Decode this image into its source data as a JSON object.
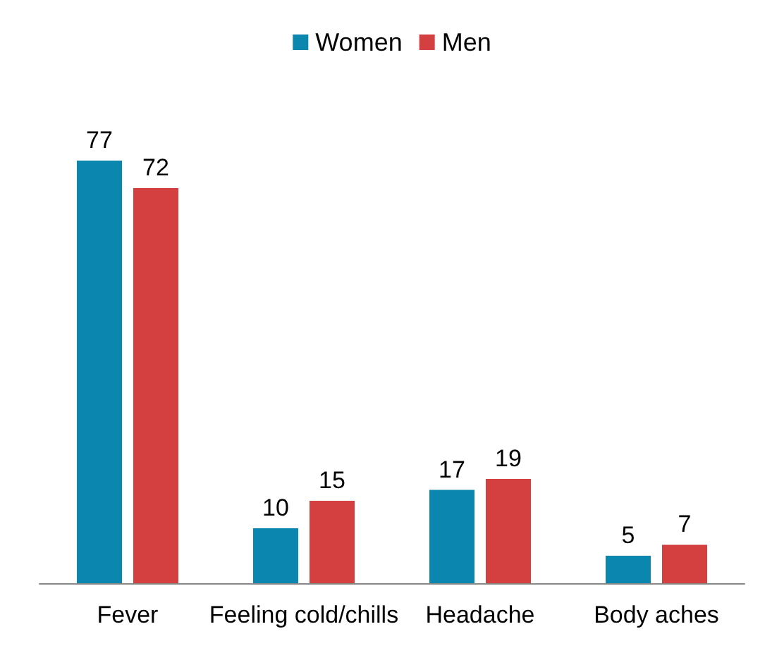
{
  "chart_data": {
    "type": "bar",
    "categories": [
      "Fever",
      "Feeling cold/chills",
      "Headache",
      "Body aches"
    ],
    "series": [
      {
        "name": "Women",
        "color": "#0b86ae",
        "values": [
          77,
          10,
          17,
          5
        ]
      },
      {
        "name": "Men",
        "color": "#d3403f",
        "values": [
          72,
          15,
          19,
          7
        ]
      }
    ],
    "data_labels": true,
    "legend": "top"
  }
}
